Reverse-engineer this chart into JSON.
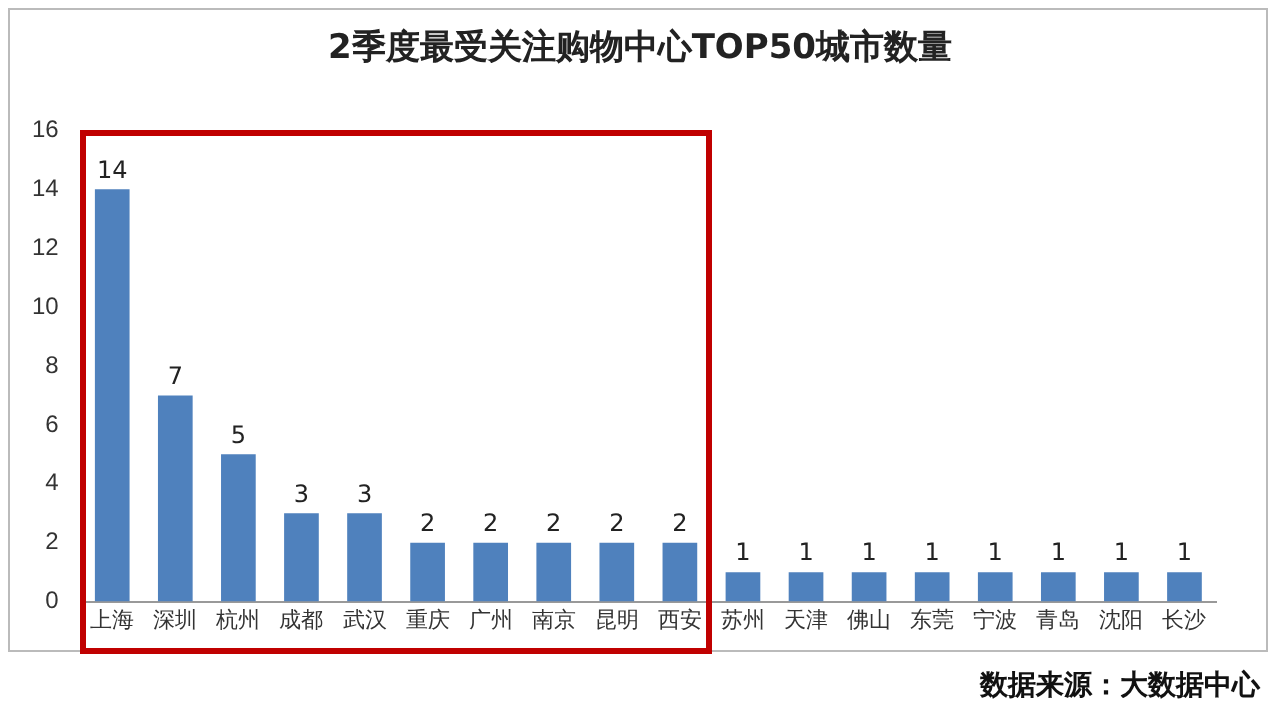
{
  "chart_data": {
    "type": "bar",
    "title": "2季度最受关注购物中心TOP50城市数量",
    "categories": [
      "上海",
      "深圳",
      "杭州",
      "成都",
      "武汉",
      "重庆",
      "广州",
      "南京",
      "昆明",
      "西安",
      "苏州",
      "天津",
      "佛山",
      "东莞",
      "宁波",
      "青岛",
      "沈阳",
      "长沙"
    ],
    "values": [
      14,
      7,
      5,
      3,
      3,
      2,
      2,
      2,
      2,
      2,
      1,
      1,
      1,
      1,
      1,
      1,
      1,
      1
    ],
    "color": "#4f81bd",
    "ylim": [
      0,
      16
    ],
    "yticks": [
      0,
      2,
      4,
      6,
      8,
      10,
      12,
      14,
      16
    ],
    "grid": false,
    "data_labels": true,
    "annotations": [
      "数据来源：大数据中心"
    ]
  }
}
